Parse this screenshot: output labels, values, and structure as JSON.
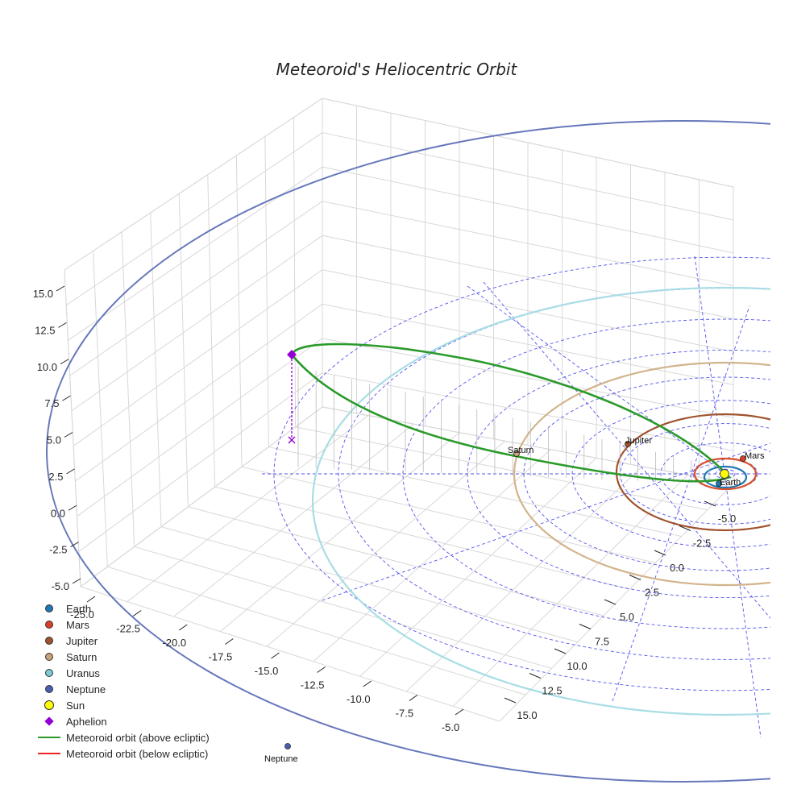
{
  "chart_data": {
    "type": "line-3d",
    "title": "Meteoroid's Heliocentric Orbit",
    "axes": {
      "x": {
        "ticks": [
          "-25.0",
          "-22.5",
          "-20.0",
          "-17.5",
          "-15.0",
          "-12.5",
          "-10.0",
          "-7.5",
          "-5.0"
        ],
        "range": [
          -25,
          -5
        ]
      },
      "y": {
        "ticks": [
          "-5.0",
          "-2.5",
          "0.0",
          "2.5",
          "5.0",
          "7.5",
          "10.0",
          "12.5",
          "15.0"
        ],
        "range": [
          -5,
          15
        ]
      },
      "z": {
        "ticks": [
          "-5.0",
          "-2.5",
          "0.0",
          "2.5",
          "5.0",
          "7.5",
          "10.0",
          "12.5",
          "15.0"
        ],
        "range": [
          -5,
          15
        ]
      }
    },
    "planet_orbits": [
      {
        "name": "Earth",
        "radius_au": 1.0,
        "color": "#1f77b4"
      },
      {
        "name": "Mars",
        "radius_au": 1.52,
        "color": "#d9502a"
      },
      {
        "name": "Jupiter",
        "radius_au": 5.2,
        "color": "#a0522d"
      },
      {
        "name": "Saturn",
        "radius_au": 9.58,
        "color": "#d2b48c"
      },
      {
        "name": "Uranus",
        "radius_au": 19.2,
        "color": "#a8dde5"
      },
      {
        "name": "Neptune",
        "radius_au": 30.05,
        "color": "#6677bb"
      }
    ],
    "planet_labels": [
      "Earth",
      "Mars",
      "Jupiter",
      "Saturn",
      "Neptune"
    ],
    "aphelion": {
      "label": "Aphelion",
      "color": "#9400d3"
    },
    "legend": [
      {
        "label": "Earth",
        "kind": "dot",
        "color": "#1f77b4"
      },
      {
        "label": "Mars",
        "kind": "dot",
        "color": "#d9402a"
      },
      {
        "label": "Jupiter",
        "kind": "dot",
        "color": "#a0522d"
      },
      {
        "label": "Saturn",
        "kind": "dot",
        "color": "#c9a27a"
      },
      {
        "label": "Uranus",
        "kind": "dot",
        "color": "#7ec8d8"
      },
      {
        "label": "Neptune",
        "kind": "dot",
        "color": "#4b5fb0"
      },
      {
        "label": "Sun",
        "kind": "sun",
        "color": "#ffff00"
      },
      {
        "label": "Aphelion",
        "kind": "diamond",
        "color": "#9400d3"
      },
      {
        "label": "Meteoroid orbit (above ecliptic)",
        "kind": "line",
        "color": "#2a9a2a"
      },
      {
        "label": "Meteoroid orbit (below ecliptic)",
        "kind": "line",
        "color": "#ee2222"
      }
    ]
  }
}
